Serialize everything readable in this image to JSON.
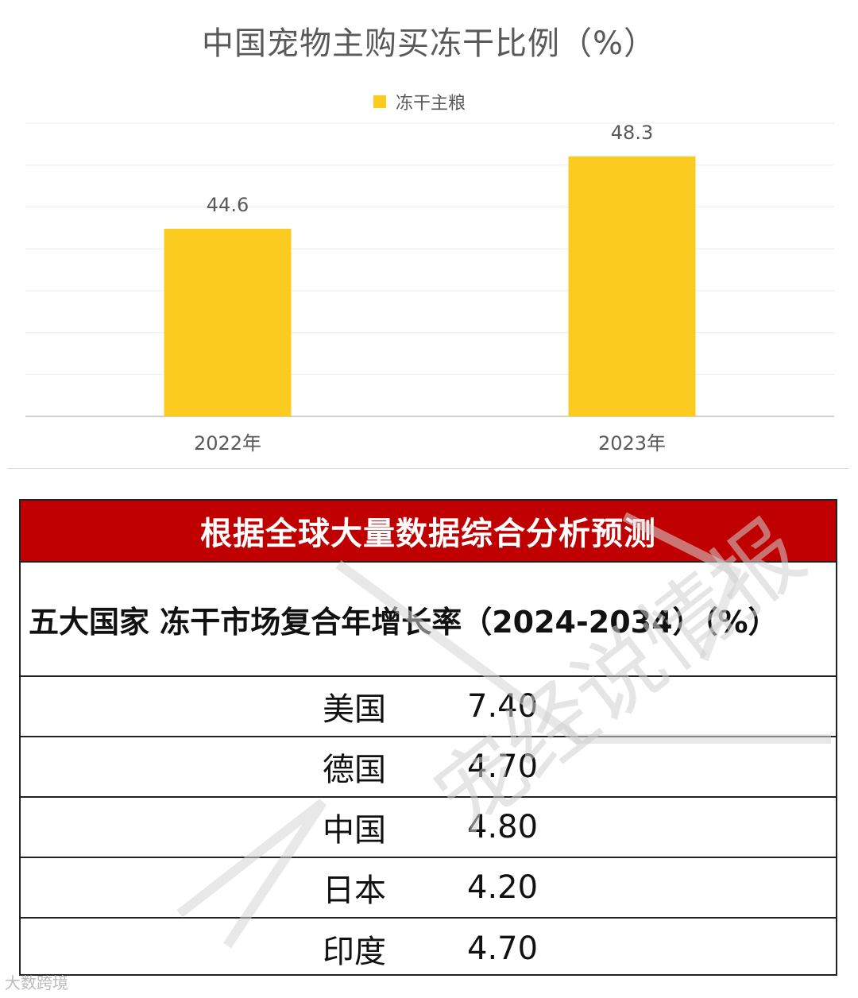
{
  "chart_data": {
    "type": "bar",
    "title": "中国宠物主购买冻干比例（%）",
    "categories": [
      "2022年",
      "2023年"
    ],
    "series": [
      {
        "name": "冻干主粮",
        "values": [
          44.6,
          48.3
        ],
        "color": "#FCCB1F"
      }
    ],
    "data_labels": [
      "44.6",
      "48.3"
    ],
    "ylim": [
      35,
      50
    ],
    "grid": true,
    "legend": "top-center"
  },
  "table": {
    "header": "根据全球大量数据综合分析预测",
    "subtitle": "五大国家 冻干市场复合年增长率（2024-2034）（%）",
    "header_color": "#C00000",
    "rows": [
      {
        "country": "美国",
        "value": "7.40"
      },
      {
        "country": "德国",
        "value": "4.70"
      },
      {
        "country": "中国",
        "value": "4.80"
      },
      {
        "country": "日本",
        "value": "4.20"
      },
      {
        "country": "印度",
        "value": "4.70"
      }
    ]
  },
  "watermark": {
    "text": "宠经说情报",
    "corner_text": "大数跨境"
  }
}
